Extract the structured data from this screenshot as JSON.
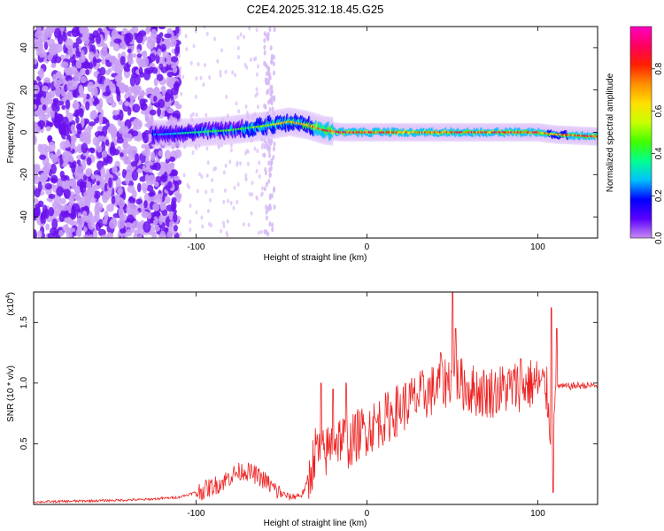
{
  "title": "C2E4.2025.312.18.45.G25",
  "colors": {
    "line": "#ee2222",
    "frame": "#000000"
  },
  "chart_data": [
    {
      "type": "heatmap",
      "xlabel": "Height of straight line (km)",
      "ylabel": "Frequency (Hz)",
      "xlim": [
        -195,
        135
      ],
      "ylim": [
        -50,
        50
      ],
      "xticks": [
        -100,
        0,
        100
      ],
      "xtick_labels": [
        "-100",
        "0",
        "100"
      ],
      "yticks": [
        -40,
        -20,
        0,
        20,
        40
      ],
      "ytick_labels": [
        "-40",
        "-20",
        "0",
        "20",
        "40"
      ],
      "colorbar": {
        "label": "Normalized spectral amplitude",
        "range": [
          0,
          1
        ],
        "ticks": [
          0.0,
          0.2,
          0.4,
          0.6,
          0.8
        ],
        "tick_labels": [
          "0.0",
          "0.2",
          "0.4",
          "0.6",
          "0.8"
        ],
        "stops": [
          "#c98cf0",
          "#5a00ff",
          "#0000ff",
          "#00c0ff",
          "#00ff90",
          "#40ff00",
          "#c8ff00",
          "#ffe000",
          "#ff9000",
          "#ff2000",
          "#ff0060",
          "#ff00c0"
        ]
      },
      "ridge": {
        "x": [
          -120,
          -100,
          -80,
          -60,
          -45,
          -35,
          -25,
          -15,
          0,
          20,
          50,
          80,
          100,
          110,
          135
        ],
        "freq": [
          -1,
          0,
          1,
          3,
          5,
          3.5,
          1,
          0,
          0,
          0,
          0,
          0,
          0,
          -1,
          -2
        ],
        "amplitude": [
          0.3,
          0.45,
          0.5,
          0.55,
          0.75,
          0.7,
          0.9,
          0.95,
          0.9,
          0.85,
          0.85,
          0.9,
          0.9,
          0.7,
          0.95
        ]
      }
    },
    {
      "type": "line",
      "xlabel": "Height of straight line (km)",
      "ylabel": "SNR (10 * v/v)",
      "yscale_label": "(x10",
      "yscale_exp": "4",
      "xlim": [
        -195,
        135
      ],
      "ylim": [
        0,
        1.75
      ],
      "xticks": [
        -100,
        0,
        100
      ],
      "xtick_labels": [
        "-100",
        "0",
        "100"
      ],
      "yticks": [
        0.5,
        1.0,
        1.5
      ],
      "ytick_labels": [
        "0.5",
        "1.0",
        "1.5"
      ],
      "x": [
        -195,
        -160,
        -130,
        -110,
        -95,
        -85,
        -78,
        -72,
        -66,
        -60,
        -52,
        -45,
        -38,
        -34,
        -30,
        -25,
        -20,
        -15,
        -10,
        -5,
        0,
        10,
        20,
        30,
        40,
        45,
        50,
        55,
        60,
        70,
        80,
        90,
        100,
        105,
        108,
        110,
        112,
        115,
        125,
        135
      ],
      "y": [
        0.02,
        0.03,
        0.04,
        0.06,
        0.12,
        0.18,
        0.25,
        0.28,
        0.25,
        0.2,
        0.1,
        0.06,
        0.08,
        0.2,
        0.45,
        0.4,
        0.52,
        0.55,
        0.5,
        0.58,
        0.62,
        0.7,
        0.8,
        0.88,
        0.95,
        1.0,
        1.05,
        1.0,
        0.95,
        0.92,
        0.95,
        0.98,
        1.0,
        0.95,
        0.6,
        0.95,
        0.98,
        0.97,
        0.98,
        0.98
      ],
      "spikes": [
        {
          "x": -27,
          "y": 1.0
        },
        {
          "x": -20,
          "y": 0.95
        },
        {
          "x": -12,
          "y": 1.0
        },
        {
          "x": 43,
          "y": 1.25
        },
        {
          "x": 50,
          "y": 1.75
        },
        {
          "x": 52,
          "y": 1.45
        },
        {
          "x": 90,
          "y": 1.2
        },
        {
          "x": 108,
          "y": 1.62
        },
        {
          "x": 109,
          "y": 0.1
        },
        {
          "x": 111,
          "y": 1.45
        }
      ]
    }
  ]
}
